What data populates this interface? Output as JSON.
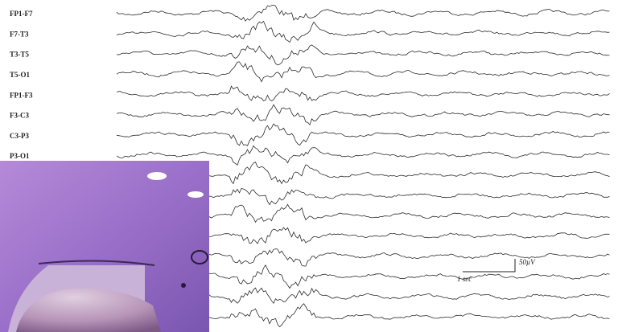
{
  "channels": [
    "FP1-F7",
    "F7-T3",
    "T3-T5",
    "T5-O1",
    "FP1-F3",
    "F3-C3",
    "C3-P3",
    "P3-O1"
  ],
  "scale": {
    "amplitude": "50µV",
    "time": "1 sec"
  }
}
